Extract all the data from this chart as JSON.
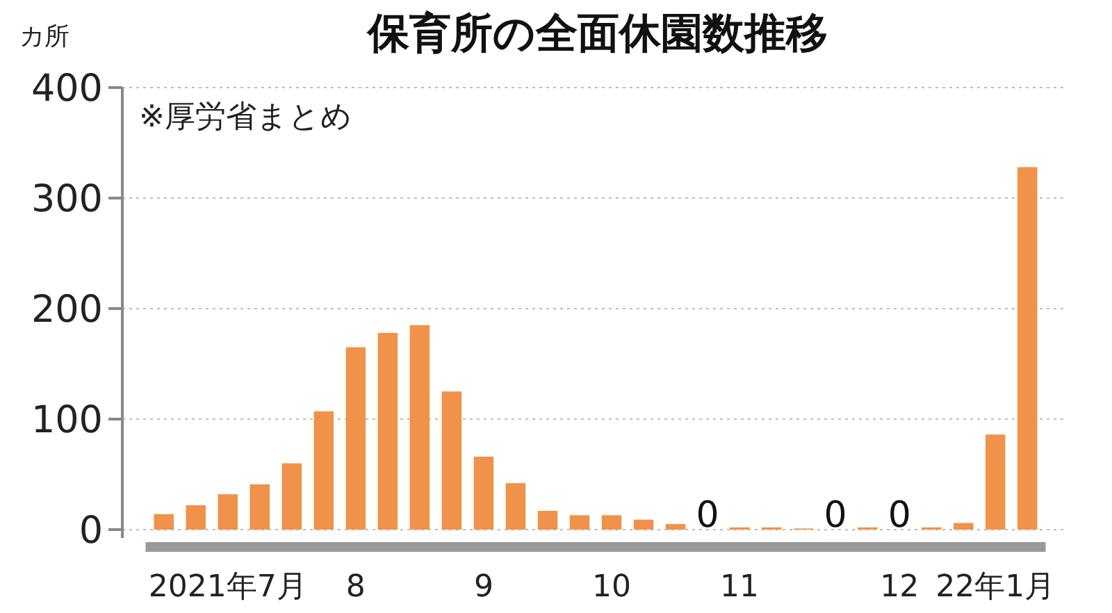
{
  "chart_data": {
    "type": "bar",
    "title": "保育所の全面休園数推移",
    "ylabel": "カ所",
    "annotations": [
      "※厚労省まとめ"
    ],
    "categories": [
      null,
      null,
      "2021年7月",
      null,
      null,
      null,
      "8",
      null,
      null,
      null,
      "9",
      null,
      null,
      null,
      "10",
      null,
      null,
      null,
      "11",
      null,
      null,
      null,
      null,
      "12",
      null,
      null,
      "22年1月",
      null
    ],
    "values": [
      14,
      22,
      32,
      41,
      60,
      107,
      165,
      178,
      185,
      125,
      66,
      42,
      17,
      13,
      13,
      9,
      5,
      0,
      2,
      2,
      1,
      0,
      2,
      0,
      2,
      6,
      86,
      328
    ],
    "value_labels": [
      null,
      null,
      null,
      null,
      null,
      null,
      null,
      null,
      null,
      null,
      null,
      null,
      null,
      null,
      null,
      null,
      null,
      "0",
      null,
      null,
      null,
      "0",
      null,
      "0",
      null,
      null,
      null,
      null
    ],
    "color": "#f0924a",
    "ylim": [
      0,
      400
    ],
    "yticks": [
      0,
      100,
      200,
      300,
      400
    ],
    "grid": "y"
  }
}
